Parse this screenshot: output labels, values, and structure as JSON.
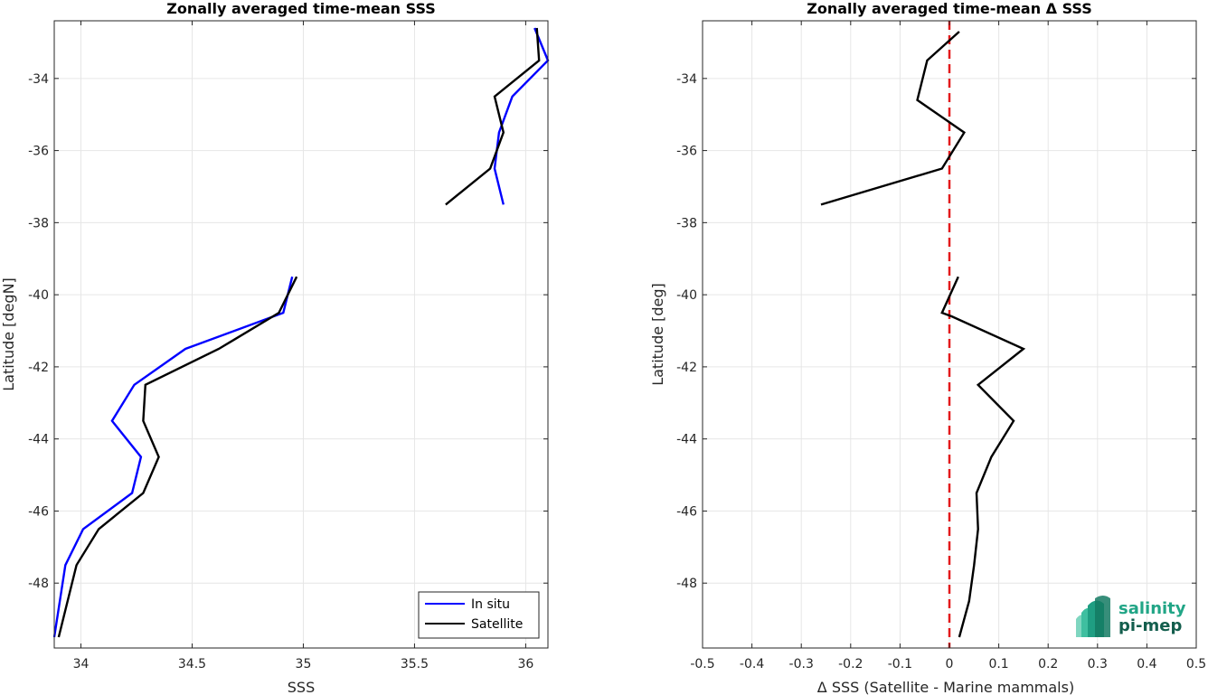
{
  "chart_data": [
    {
      "type": "line",
      "title": "Zonally averaged time-mean SSS",
      "xlabel": "SSS",
      "ylabel": "Latitude [degN]",
      "xlim": [
        33.88,
        36.1
      ],
      "ylim": [
        -49.8,
        -32.4
      ],
      "xticks": [
        34,
        34.5,
        35,
        35.5,
        36
      ],
      "xtick_labels": [
        "34",
        "34.5",
        "35",
        "35.5",
        "36"
      ],
      "yticks": [
        -48,
        -46,
        -44,
        -42,
        -40,
        -38,
        -36,
        -34
      ],
      "ytick_labels": [
        "-48",
        "-46",
        "-44",
        "-42",
        "-40",
        "-38",
        "-36",
        "-34"
      ],
      "grid": true,
      "legend_position": "bottom-right",
      "series": [
        {
          "name": "In situ",
          "color": "#0000ff",
          "segments": [
            [
              [
                35.9,
                -37.5
              ],
              [
                35.86,
                -36.5
              ],
              [
                35.88,
                -35.5
              ],
              [
                35.94,
                -34.5
              ],
              [
                36.1,
                -33.5
              ],
              [
                36.04,
                -32.6
              ]
            ],
            [
              [
                33.88,
                -49.5
              ],
              [
                33.93,
                -47.5
              ],
              [
                34.01,
                -46.5
              ],
              [
                34.23,
                -45.5
              ],
              [
                34.27,
                -44.5
              ],
              [
                34.14,
                -43.5
              ],
              [
                34.24,
                -42.5
              ],
              [
                34.47,
                -41.5
              ],
              [
                34.91,
                -40.5
              ],
              [
                34.95,
                -39.5
              ]
            ]
          ]
        },
        {
          "name": "Satellite",
          "color": "#000000",
          "segments": [
            [
              [
                35.64,
                -37.5
              ],
              [
                35.84,
                -36.5
              ],
              [
                35.9,
                -35.5
              ],
              [
                35.86,
                -34.5
              ],
              [
                36.06,
                -33.5
              ],
              [
                36.05,
                -32.6
              ]
            ],
            [
              [
                33.9,
                -49.5
              ],
              [
                33.98,
                -47.5
              ],
              [
                34.08,
                -46.5
              ],
              [
                34.28,
                -45.5
              ],
              [
                34.35,
                -44.5
              ],
              [
                34.28,
                -43.5
              ],
              [
                34.29,
                -42.5
              ],
              [
                34.62,
                -41.5
              ],
              [
                34.89,
                -40.5
              ],
              [
                34.97,
                -39.5
              ]
            ]
          ]
        }
      ]
    },
    {
      "type": "line",
      "title": "Zonally averaged time-mean Δ SSS",
      "xlabel": "Δ SSS (Satellite - Marine mammals)",
      "ylabel": "Latitude [deg]",
      "xlim": [
        -0.5,
        0.5
      ],
      "ylim": [
        -49.8,
        -32.4
      ],
      "xticks": [
        -0.5,
        -0.4,
        -0.3,
        -0.2,
        -0.1,
        0,
        0.1,
        0.2,
        0.3,
        0.4,
        0.5
      ],
      "xtick_labels": [
        "-0.5",
        "-0.4",
        "-0.3",
        "-0.2",
        "-0.1",
        "0",
        "0.1",
        "0.2",
        "0.3",
        "0.4",
        "0.5"
      ],
      "yticks": [
        -48,
        -46,
        -44,
        -42,
        -40,
        -38,
        -36,
        -34
      ],
      "ytick_labels": [
        "-48",
        "-46",
        "-44",
        "-42",
        "-40",
        "-38",
        "-36",
        "-34"
      ],
      "grid": true,
      "reference_line": {
        "x": 0,
        "color": "#e31a1c",
        "style": "dashed"
      },
      "series": [
        {
          "name": "",
          "color": "#000000",
          "segments": [
            [
              [
                -0.26,
                -37.5
              ],
              [
                -0.015,
                -36.5
              ],
              [
                0.03,
                -35.5
              ],
              [
                -0.065,
                -34.6
              ],
              [
                -0.045,
                -33.5
              ],
              [
                0.02,
                -32.7
              ]
            ],
            [
              [
                0.02,
                -49.5
              ],
              [
                0.04,
                -48.5
              ],
              [
                0.05,
                -47.5
              ],
              [
                0.058,
                -46.5
              ],
              [
                0.055,
                -45.5
              ],
              [
                0.085,
                -44.5
              ],
              [
                0.13,
                -43.5
              ],
              [
                0.058,
                -42.5
              ],
              [
                0.15,
                -41.5
              ],
              [
                0.005,
                -40.6
              ],
              [
                -0.015,
                -40.5
              ],
              [
                0.018,
                -39.5
              ]
            ]
          ]
        }
      ]
    }
  ],
  "logo": {
    "line1": "salinity",
    "line2": "pi-mep",
    "color": "#21a586"
  }
}
